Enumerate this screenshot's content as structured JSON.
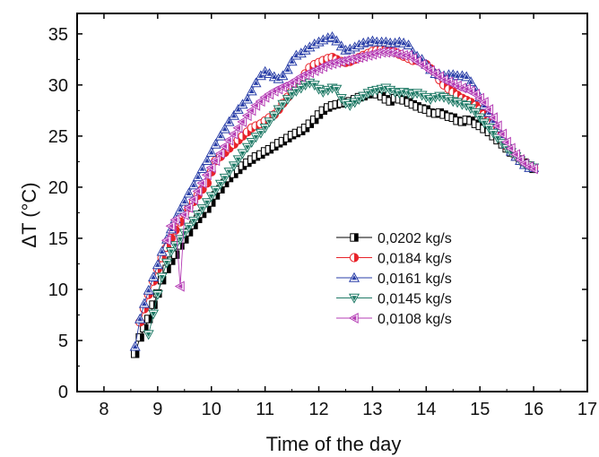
{
  "chart_data": {
    "type": "scatter",
    "xlabel": "Time of the day",
    "ylabel": "ΔT (°C)",
    "xlim": [
      7.5,
      17
    ],
    "ylim": [
      0,
      37
    ],
    "xticks": [
      8,
      9,
      10,
      11,
      12,
      13,
      14,
      15,
      16,
      17
    ],
    "yticks": [
      0,
      5,
      10,
      15,
      20,
      25,
      30,
      35
    ],
    "grid": false,
    "legend_position": "center-right",
    "series": [
      {
        "name": "0,0202 kg/s",
        "marker": "square",
        "color": "#000000",
        "x": [
          8.58,
          8.67,
          8.75,
          8.83,
          8.92,
          9.0,
          9.08,
          9.17,
          9.25,
          9.33,
          9.42,
          9.5,
          9.58,
          9.67,
          9.75,
          9.83,
          9.92,
          10.0,
          10.08,
          10.17,
          10.25,
          10.33,
          10.42,
          10.5,
          10.58,
          10.67,
          10.75,
          10.83,
          10.92,
          11.0,
          11.08,
          11.17,
          11.25,
          11.33,
          11.42,
          11.5,
          11.58,
          11.67,
          11.75,
          11.83,
          11.92,
          12.0,
          12.08,
          12.17,
          12.25,
          12.33,
          12.42,
          12.5,
          12.58,
          12.67,
          12.75,
          12.83,
          12.92,
          13.0,
          13.08,
          13.17,
          13.25,
          13.33,
          13.42,
          13.5,
          13.58,
          13.67,
          13.75,
          13.83,
          13.92,
          14.0,
          14.08,
          14.17,
          14.25,
          14.33,
          14.42,
          14.5,
          14.58,
          14.67,
          14.75,
          14.83,
          14.92,
          15.0,
          15.08,
          15.17,
          15.25,
          15.33,
          15.42,
          15.5,
          15.58,
          15.67,
          15.75,
          15.83,
          15.92,
          16.0
        ],
        "y": [
          3.7,
          5.3,
          6.2,
          7.1,
          8.5,
          9.6,
          10.9,
          12.0,
          12.8,
          13.4,
          14.3,
          14.9,
          15.6,
          16.3,
          16.9,
          17.4,
          17.9,
          18.5,
          19.2,
          19.8,
          20.4,
          20.9,
          21.3,
          21.7,
          22.1,
          22.4,
          22.7,
          23.0,
          23.2,
          23.5,
          23.7,
          24.0,
          24.3,
          24.5,
          24.8,
          25.1,
          25.3,
          25.5,
          25.8,
          26.2,
          26.6,
          27.1,
          27.5,
          27.8,
          28.0,
          28.1,
          28.2,
          28.3,
          28.4,
          28.6,
          28.8,
          28.9,
          29.1,
          29.3,
          29.1,
          28.9,
          28.6,
          28.4,
          28.7,
          28.6,
          28.5,
          28.3,
          28.1,
          27.9,
          27.7,
          27.6,
          27.3,
          27.2,
          27.3,
          27.1,
          26.9,
          26.8,
          26.5,
          26.4,
          26.6,
          26.5,
          26.2,
          26.0,
          25.7,
          25.4,
          25.0,
          24.6,
          24.2,
          23.8,
          23.4,
          23.0,
          22.7,
          22.4,
          22.1,
          21.8
        ]
      },
      {
        "name": "0,0184 kg/s",
        "marker": "circle-half",
        "color": "#e8232a",
        "x": [
          8.67,
          8.75,
          8.83,
          8.92,
          9.0,
          9.08,
          9.17,
          9.25,
          9.33,
          9.42,
          9.5,
          9.58,
          9.67,
          9.75,
          9.83,
          9.92,
          10.0,
          10.08,
          10.17,
          10.25,
          10.33,
          10.42,
          10.5,
          10.58,
          10.67,
          10.75,
          10.83,
          10.92,
          11.0,
          11.08,
          11.17,
          11.25,
          11.33,
          11.42,
          11.5,
          11.58,
          11.67,
          11.75,
          11.83,
          11.92,
          12.0,
          12.08,
          12.17,
          12.25,
          12.33,
          12.42,
          12.5,
          12.58,
          12.67,
          12.75,
          12.83,
          12.92,
          13.0,
          13.08,
          13.17,
          13.25,
          13.33,
          13.42,
          13.5,
          13.58,
          13.67,
          13.75,
          13.83,
          13.92,
          14.0,
          14.08,
          14.17,
          14.25,
          14.33,
          14.42,
          14.5,
          14.58,
          14.67,
          14.75,
          14.83,
          14.92,
          15.0,
          15.08,
          15.17,
          15.25,
          15.33,
          15.42,
          15.5,
          15.58,
          15.67,
          15.75,
          15.83,
          15.92,
          16.0
        ],
        "y": [
          6.8,
          8.1,
          9.5,
          10.8,
          12.0,
          13.1,
          14.1,
          15.0,
          15.8,
          16.6,
          17.4,
          18.0,
          18.6,
          19.2,
          19.8,
          20.4,
          21.5,
          22.6,
          23.0,
          23.4,
          23.8,
          24.2,
          24.6,
          25.0,
          25.4,
          25.8,
          26.0,
          26.2,
          26.5,
          26.8,
          27.1,
          27.6,
          28.2,
          28.8,
          29.4,
          29.9,
          30.4,
          31.1,
          31.7,
          32.0,
          32.2,
          32.4,
          32.6,
          32.7,
          32.5,
          32.3,
          32.2,
          32.3,
          32.5,
          32.7,
          32.9,
          33.1,
          33.3,
          33.4,
          33.5,
          33.4,
          33.3,
          33.2,
          33.0,
          32.8,
          32.6,
          32.4,
          32.4,
          32.2,
          32.0,
          31.6,
          31.1,
          30.5,
          30.0,
          29.6,
          29.3,
          29.0,
          28.7,
          28.5,
          28.3,
          28.0,
          27.6,
          27.1,
          26.5,
          25.9,
          25.3,
          24.6,
          24.0,
          23.5,
          23.0,
          22.6,
          22.3,
          22.1,
          21.9
        ]
      },
      {
        "name": "0,0161 kg/s",
        "marker": "triangle-up",
        "color": "#2a3fa8",
        "x": [
          8.58,
          8.67,
          8.75,
          8.83,
          8.92,
          9.0,
          9.08,
          9.17,
          9.25,
          9.33,
          9.42,
          9.5,
          9.58,
          9.67,
          9.75,
          9.83,
          9.92,
          10.0,
          10.08,
          10.17,
          10.25,
          10.33,
          10.42,
          10.5,
          10.58,
          10.67,
          10.75,
          10.83,
          10.92,
          11.0,
          11.08,
          11.17,
          11.25,
          11.33,
          11.42,
          11.5,
          11.58,
          11.67,
          11.75,
          11.83,
          11.92,
          12.0,
          12.08,
          12.17,
          12.25,
          12.33,
          12.42,
          12.5,
          12.58,
          12.67,
          12.75,
          12.83,
          12.92,
          13.0,
          13.08,
          13.17,
          13.25,
          13.33,
          13.42,
          13.5,
          13.58,
          13.67,
          13.75,
          13.83,
          13.92,
          14.0,
          14.08,
          14.17,
          14.25,
          14.33,
          14.42,
          14.5,
          14.58,
          14.67,
          14.75,
          14.83,
          14.92,
          15.0,
          15.08,
          15.17,
          15.25,
          15.33,
          15.42,
          15.5,
          15.58,
          15.67,
          15.75,
          15.83,
          15.92,
          16.0
        ],
        "y": [
          4.4,
          7.1,
          8.6,
          9.9,
          11.2,
          12.4,
          13.7,
          14.9,
          15.9,
          16.9,
          17.8,
          18.6,
          19.4,
          20.2,
          21.0,
          21.8,
          22.6,
          23.4,
          24.2,
          25.0,
          25.7,
          26.4,
          27.0,
          27.6,
          28.1,
          28.6,
          29.4,
          30.2,
          30.9,
          31.3,
          31.1,
          30.8,
          30.6,
          30.9,
          31.5,
          32.3,
          32.9,
          33.1,
          33.4,
          33.7,
          34.0,
          34.2,
          34.4,
          34.6,
          34.7,
          34.3,
          33.8,
          33.4,
          33.5,
          33.7,
          33.9,
          34.1,
          34.2,
          34.3,
          34.2,
          34.2,
          34.2,
          34.1,
          34.1,
          34.2,
          34.1,
          33.9,
          33.2,
          32.8,
          32.5,
          32.0,
          31.5,
          31.1,
          31.0,
          30.9,
          31.0,
          31.0,
          30.9,
          30.9,
          30.8,
          30.3,
          29.5,
          28.8,
          28.0,
          27.3,
          26.5,
          25.8,
          25.0,
          24.2,
          23.5,
          23.0,
          22.6,
          22.2,
          21.9,
          21.9
        ]
      },
      {
        "name": "0,0145 kg/s",
        "marker": "triangle-down",
        "color": "#1f7a66",
        "x": [
          8.83,
          8.92,
          9.0,
          9.08,
          9.17,
          9.25,
          9.33,
          9.42,
          9.5,
          9.58,
          9.67,
          9.75,
          9.83,
          9.92,
          10.0,
          10.08,
          10.17,
          10.25,
          10.33,
          10.42,
          10.5,
          10.58,
          10.67,
          10.75,
          10.83,
          10.92,
          11.0,
          11.08,
          11.17,
          11.25,
          11.33,
          11.42,
          11.5,
          11.58,
          11.67,
          11.75,
          11.83,
          11.92,
          12.0,
          12.08,
          12.17,
          12.25,
          12.33,
          12.42,
          12.5,
          12.58,
          12.67,
          12.75,
          12.83,
          12.92,
          13.0,
          13.08,
          13.17,
          13.25,
          13.33,
          13.42,
          13.5,
          13.58,
          13.67,
          13.75,
          13.83,
          13.92,
          14.0,
          14.08,
          14.17,
          14.25,
          14.33,
          14.42,
          14.5,
          14.58,
          14.67,
          14.75,
          14.83,
          14.92,
          15.0,
          15.08,
          15.17,
          15.25,
          15.33,
          15.42,
          15.5,
          15.58,
          15.67,
          15.75,
          15.83,
          15.92,
          16.0
        ],
        "y": [
          5.6,
          7.6,
          9.5,
          11.2,
          12.6,
          13.7,
          14.3,
          14.9,
          15.5,
          16.1,
          16.7,
          17.3,
          17.9,
          18.5,
          19.1,
          19.7,
          20.3,
          20.9,
          21.5,
          22.1,
          22.7,
          23.3,
          23.9,
          24.4,
          24.9,
          25.3,
          25.8,
          26.4,
          27.0,
          27.6,
          28.1,
          28.6,
          29.1,
          29.4,
          29.7,
          30.0,
          30.2,
          30.0,
          29.6,
          29.3,
          29.5,
          29.7,
          29.6,
          28.7,
          28.2,
          28.0,
          28.3,
          28.6,
          28.9,
          29.2,
          29.4,
          29.5,
          29.6,
          29.7,
          29.5,
          29.3,
          29.2,
          29.3,
          29.2,
          29.1,
          29.2,
          29.0,
          28.8,
          28.6,
          28.8,
          28.9,
          28.8,
          28.6,
          28.4,
          28.3,
          28.1,
          28.0,
          27.7,
          27.3,
          26.8,
          26.3,
          25.8,
          25.3,
          24.8,
          24.3,
          23.8,
          23.4,
          23.0,
          22.6,
          22.3,
          22.1,
          21.9
        ]
      },
      {
        "name": "0,0108 kg/s",
        "marker": "triangle-left",
        "color": "#b43cb4",
        "x": [
          9.17,
          9.25,
          9.33,
          9.42,
          9.5,
          9.58,
          9.67,
          9.75,
          9.83,
          9.92,
          10.0,
          10.08,
          10.17,
          10.25,
          10.33,
          10.42,
          10.5,
          10.58,
          10.67,
          10.75,
          10.83,
          10.92,
          11.0,
          11.08,
          11.17,
          11.25,
          11.33,
          11.42,
          11.5,
          11.58,
          11.67,
          11.75,
          11.83,
          11.92,
          12.0,
          12.08,
          12.17,
          12.25,
          12.33,
          12.42,
          12.5,
          12.58,
          12.67,
          12.75,
          12.83,
          12.92,
          13.0,
          13.08,
          13.17,
          13.25,
          13.33,
          13.42,
          13.5,
          13.58,
          13.67,
          13.75,
          13.83,
          13.92,
          14.0,
          14.08,
          14.17,
          14.25,
          14.33,
          14.42,
          14.5,
          14.58,
          14.67,
          14.75,
          14.83,
          14.92,
          15.0,
          15.08,
          15.17,
          15.25,
          15.33,
          15.42,
          15.5,
          15.58,
          15.67,
          15.75,
          15.83,
          15.92,
          16.0
        ],
        "y": [
          14.8,
          16.2,
          16.8,
          10.3,
          17.3,
          18.0,
          18.8,
          19.6,
          20.4,
          21.2,
          21.9,
          22.6,
          23.3,
          24.0,
          24.6,
          25.2,
          25.8,
          26.4,
          27.0,
          27.5,
          28.0,
          28.4,
          28.8,
          29.1,
          29.4,
          29.6,
          29.8,
          30.0,
          30.2,
          30.5,
          30.8,
          31.0,
          31.2,
          31.4,
          31.6,
          31.8,
          32.0,
          32.1,
          32.2,
          32.3,
          32.4,
          32.5,
          32.6,
          32.7,
          32.8,
          32.9,
          33.0,
          33.1,
          33.2,
          33.2,
          33.2,
          33.1,
          33.0,
          32.9,
          32.9,
          32.6,
          32.3,
          32.0,
          31.7,
          31.4,
          31.1,
          30.8,
          30.5,
          30.3,
          30.1,
          29.9,
          29.7,
          29.6,
          29.4,
          29.1,
          28.7,
          28.3,
          27.6,
          26.8,
          26.0,
          25.2,
          24.4,
          23.8,
          23.2,
          22.7,
          22.3,
          22.0,
          21.8
        ]
      }
    ]
  }
}
